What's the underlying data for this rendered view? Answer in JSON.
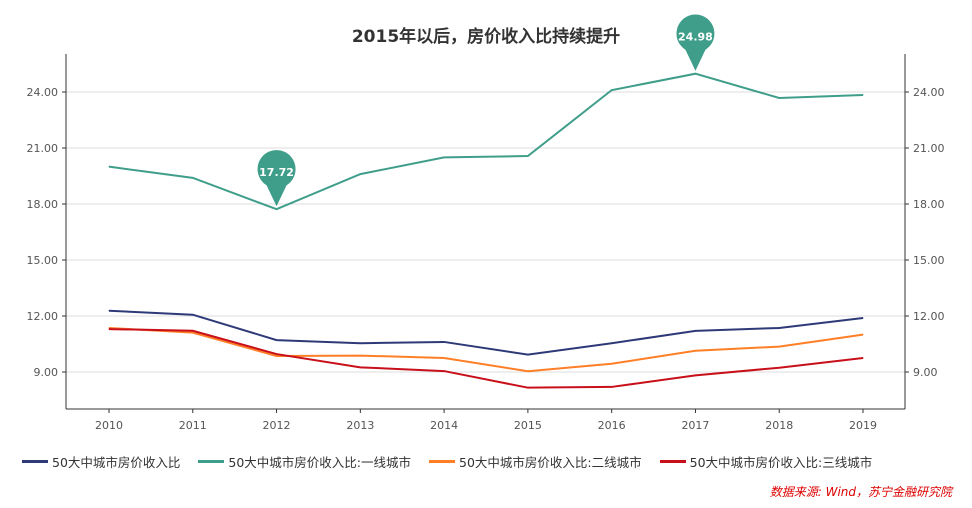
{
  "chart_data": {
    "type": "line",
    "title": "2015年以后，房价收入比持续提升",
    "categories": [
      "2010",
      "2011",
      "2012",
      "2013",
      "2014",
      "2015",
      "2016",
      "2017",
      "2018",
      "2019"
    ],
    "ylim": [
      7,
      26
    ],
    "yticks": [
      "9.00",
      "12.00",
      "15.00",
      "18.00",
      "21.00",
      "24.00"
    ],
    "grid": true,
    "legend_position": "bottom",
    "series": [
      {
        "name": "50大中城市房价收入比",
        "color": "#2e3a78",
        "values": [
          12.28,
          12.07,
          10.71,
          10.54,
          10.61,
          9.93,
          10.54,
          11.2,
          11.36,
          11.89
        ]
      },
      {
        "name": "50大中城市房价收入比:一线城市",
        "color": "#3f9e8a",
        "values": [
          20.0,
          19.4,
          17.72,
          19.6,
          20.5,
          20.57,
          24.1,
          24.98,
          23.68,
          23.84
        ]
      },
      {
        "name": "50大中城市房价收入比:二线城市",
        "color": "#ff7f27",
        "values": [
          11.36,
          11.11,
          9.86,
          9.88,
          9.75,
          9.04,
          9.44,
          10.14,
          10.36,
          11.0
        ]
      },
      {
        "name": "50大中城市房价收入比:三线城市",
        "color": "#c8101a",
        "values": [
          11.3,
          11.21,
          9.96,
          9.25,
          9.05,
          8.16,
          8.2,
          8.82,
          9.23,
          9.75
        ]
      }
    ],
    "annotations": [
      {
        "series": 1,
        "index": 2,
        "label": "17.72"
      },
      {
        "series": 1,
        "index": 7,
        "label": "24.98"
      }
    ]
  },
  "source": "数据来源: Wind，苏宁金融研究院"
}
